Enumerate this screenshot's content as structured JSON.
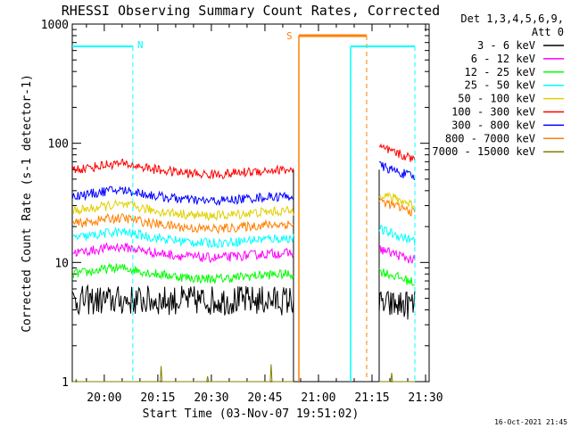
{
  "chart_data": {
    "type": "line",
    "title": "RHESSI Observing Summary Count Rates, Corrected",
    "xlabel": "Start Time (03-Nov-07 19:51:02)",
    "ylabel": "Corrected Count Rate (s-1 detector-1)",
    "y_scale": "log",
    "ylim": [
      1,
      1000
    ],
    "xlim": [
      "19:51:02",
      "21:31:00"
    ],
    "x_ticks": [
      "20:00",
      "20:15",
      "20:30",
      "20:45",
      "21:00",
      "21:15",
      "21:30"
    ],
    "y_ticks": [
      "1",
      "10",
      "100",
      "1000"
    ],
    "legend_header_1": "Det 1,3,4,5,6,9,",
    "legend_header_2": "Att 0",
    "legend_position": "right",
    "timestamp": "16-Oct-2021 21:45",
    "annotations": [
      {
        "label": "N",
        "color": "#00ffff",
        "type": "night",
        "start": "19:51:02",
        "end": "20:08:00"
      },
      {
        "label": "S",
        "color": "#ff8000",
        "type": "saa",
        "start": "20:54:30",
        "end": "21:13:30"
      },
      {
        "label": "",
        "color": "#00ffff",
        "type": "night",
        "start": "21:09:00",
        "end": "21:27:00"
      }
    ],
    "gaps": [
      [
        "20:53:00",
        "21:17:00"
      ]
    ],
    "series": [
      {
        "name": "3 - 6 keV",
        "color": "#000000",
        "values_before_gap": 4.8,
        "values_after_gap": 4.4
      },
      {
        "name": "6 - 12 keV",
        "color": "#ff00ff",
        "values_before_gap": 12,
        "values_after_gap": 13
      },
      {
        "name": "12 - 25 keV",
        "color": "#00ff00",
        "values_before_gap": 8,
        "values_after_gap": 8.5
      },
      {
        "name": "25 - 50 keV",
        "color": "#00ffff",
        "values_before_gap": 16,
        "values_after_gap": 19
      },
      {
        "name": "50 - 100 keV",
        "color": "#e0d000",
        "values_before_gap": 27,
        "values_after_gap": 38
      },
      {
        "name": "100 - 300 keV",
        "color": "#ff0000",
        "values_before_gap": 60,
        "values_after_gap": 92
      },
      {
        "name": "300 - 800 keV",
        "color": "#0000ff",
        "values_before_gap": 36,
        "values_after_gap": 65
      },
      {
        "name": "800 - 7000 keV",
        "color": "#ff8000",
        "values_before_gap": 21,
        "values_after_gap": 33
      },
      {
        "name": "7000 - 15000 keV",
        "color": "#808000",
        "values_before_gap": 1,
        "values_after_gap": 1
      }
    ]
  }
}
